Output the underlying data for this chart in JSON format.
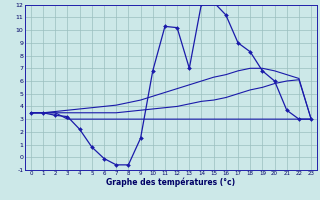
{
  "xlabel": "Graphe des températures (°c)",
  "bg_color": "#cce8e8",
  "grid_color": "#9bbfbf",
  "line_color": "#1a1aaa",
  "xmin": 0,
  "xmax": 23,
  "ymin": -1,
  "ymax": 12,
  "hours": [
    0,
    1,
    2,
    3,
    4,
    5,
    6,
    7,
    8,
    9,
    10,
    11,
    12,
    13,
    14,
    15,
    16,
    17,
    18,
    19,
    20,
    21,
    22,
    23
  ],
  "temp_main": [
    3.5,
    3.5,
    3.3,
    3.2,
    2.2,
    0.8,
    -0.1,
    -0.6,
    -0.6,
    1.5,
    6.8,
    10.3,
    10.2,
    7.0,
    12.1,
    12.2,
    11.2,
    9.0,
    8.3,
    6.8,
    6.0,
    3.7,
    3.0,
    3.0
  ],
  "temp_flat": [
    3.5,
    3.5,
    3.5,
    3.0,
    3.0,
    3.0,
    3.0,
    3.0,
    3.0,
    3.0,
    3.0,
    3.0,
    3.0,
    3.0,
    3.0,
    3.0,
    3.0,
    3.0,
    3.0,
    3.0,
    3.0,
    3.0,
    3.0,
    3.0
  ],
  "temp_avg_low": [
    3.5,
    3.5,
    3.5,
    3.5,
    3.5,
    3.5,
    3.5,
    3.5,
    3.6,
    3.7,
    3.8,
    3.9,
    4.0,
    4.2,
    4.4,
    4.5,
    4.7,
    5.0,
    5.3,
    5.5,
    5.8,
    6.0,
    6.1,
    3.0
  ],
  "temp_avg_high": [
    3.5,
    3.5,
    3.6,
    3.7,
    3.8,
    3.9,
    4.0,
    4.1,
    4.3,
    4.5,
    4.8,
    5.1,
    5.4,
    5.7,
    6.0,
    6.3,
    6.5,
    6.8,
    7.0,
    7.0,
    6.8,
    6.5,
    6.2,
    3.0
  ]
}
